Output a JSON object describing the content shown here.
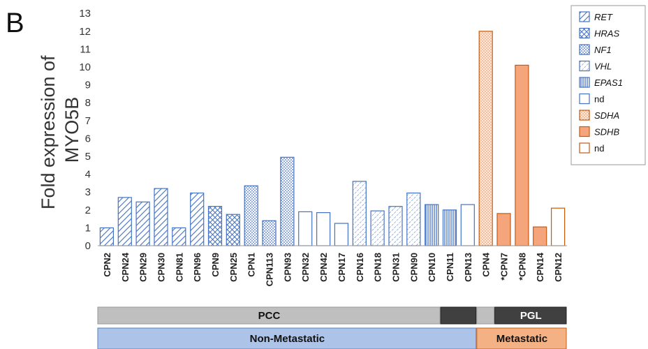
{
  "panel_label": "B",
  "colors": {
    "blue": "#4472c4",
    "orange": "#f4a57c",
    "orange_dark": "#c55a11",
    "band_gray": "#bfbfbf",
    "band_dark": "#404040",
    "band_blue": "#adc3e8",
    "band_orange": "#f4b183"
  },
  "chart_data": {
    "type": "bar",
    "ylabel": [
      "Fold expression of",
      "MYO5B"
    ],
    "ylim": [
      0,
      13
    ],
    "yticks": [
      0,
      1,
      2,
      3,
      4,
      5,
      6,
      7,
      8,
      9,
      10,
      11,
      12,
      13
    ],
    "categories": [
      "CPN2",
      "CPN24",
      "CPN29",
      "CPN30",
      "CPN81",
      "CPN96",
      "CPN9",
      "CPN25",
      "CPN1",
      "CPN113",
      "CPN93",
      "CPN32",
      "CPN42",
      "CPN17",
      "CPN16",
      "CPN18",
      "CPN31",
      "CPN90",
      "CPN10",
      "CPN11",
      "CPN13",
      "CPN4",
      "CPN7",
      "CPN8",
      "CPN14",
      "CPN12"
    ],
    "category_labels": [
      "CPN2",
      "CPN24",
      "CPN29",
      "CPN30",
      "CPN81",
      "CPN96",
      "CPN9",
      "CPN25",
      "CPN1",
      "CPN113",
      "CPN93",
      "CPN32",
      "CPN42",
      "CPN17",
      "CPN16",
      "CPN18",
      "CPN31",
      "CPN90",
      "CPN10",
      "CPN11",
      "CPN13",
      "CPN4",
      "*CPN7",
      "*CPN8",
      "CPN14",
      "CPN12"
    ],
    "values": [
      1.0,
      2.7,
      2.45,
      3.2,
      1.0,
      2.95,
      2.2,
      1.75,
      3.35,
      1.4,
      4.95,
      1.9,
      1.85,
      1.25,
      3.6,
      1.95,
      2.2,
      2.95,
      2.3,
      2.0,
      2.3,
      12.0,
      1.8,
      10.1,
      1.05,
      2.1
    ],
    "groups": [
      "RET",
      "RET",
      "RET",
      "RET",
      "RET",
      "RET",
      "HRAS",
      "HRAS",
      "NF1",
      "NF1",
      "NF1",
      "nd",
      "nd",
      "nd",
      "VHL",
      "VHL",
      "VHL",
      "VHL",
      "EPAS1",
      "EPAS1",
      "nd",
      "SDHA",
      "SDHB",
      "SDHB",
      "SDHB",
      "nd2"
    ],
    "legend": [
      {
        "key": "RET",
        "label": "RET",
        "italic": true
      },
      {
        "key": "HRAS",
        "label": "HRAS",
        "italic": true
      },
      {
        "key": "NF1",
        "label": "NF1",
        "italic": true
      },
      {
        "key": "VHL",
        "label": "VHL",
        "italic": true
      },
      {
        "key": "EPAS1",
        "label": "EPAS1",
        "italic": true
      },
      {
        "key": "nd",
        "label": "nd",
        "italic": false
      },
      {
        "key": "SDHA",
        "label": "SDHA",
        "italic": true
      },
      {
        "key": "SDHB",
        "label": "SDHB",
        "italic": true
      },
      {
        "key": "nd2",
        "label": "nd",
        "italic": false
      }
    ],
    "grid": false,
    "legend_position": "top-right"
  },
  "annotation_bands": {
    "row1": [
      {
        "label": "PCC",
        "from": 0,
        "to": 19,
        "style": "gray"
      },
      {
        "label": "",
        "from": 19,
        "to": 21,
        "style": "dark"
      },
      {
        "label": "",
        "from": 21,
        "to": 22,
        "style": "gray"
      },
      {
        "label": "PGL",
        "from": 22,
        "to": 26,
        "style": "dark"
      }
    ],
    "row2": [
      {
        "label": "Non-Metastatic",
        "from": 0,
        "to": 21,
        "style": "blue"
      },
      {
        "label": "Metastatic",
        "from": 21,
        "to": 26,
        "style": "orange"
      }
    ]
  }
}
